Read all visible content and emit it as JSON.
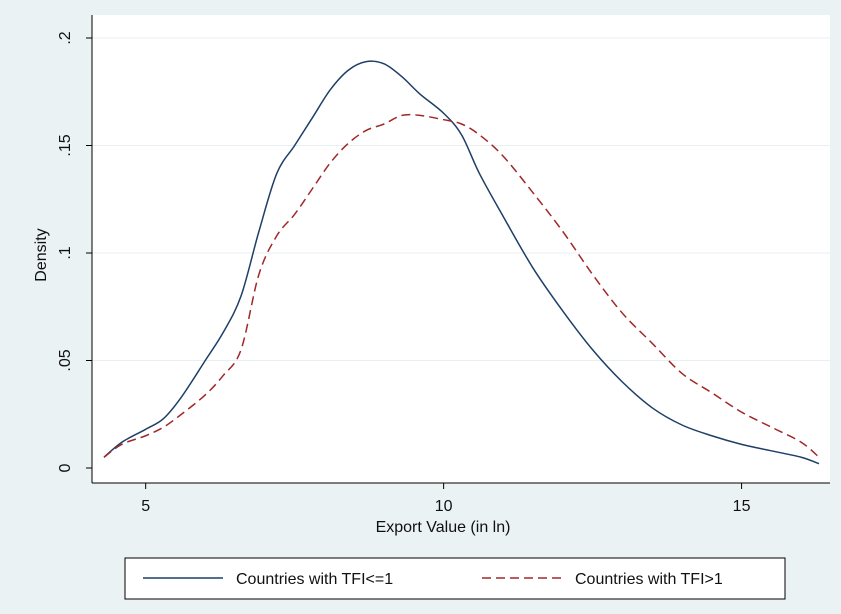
{
  "chart_data": {
    "type": "line",
    "title": "",
    "xlabel": "Export Value (in ln)",
    "ylabel": "Density",
    "xlim": [
      4.2,
      16.4
    ],
    "ylim": [
      0,
      0.205
    ],
    "x_ticks": [
      5,
      10,
      15
    ],
    "x_tick_labels": [
      "5",
      "10",
      "15"
    ],
    "y_ticks": [
      0,
      0.05,
      0.1,
      0.15,
      0.2
    ],
    "y_tick_labels": [
      "0",
      ".05",
      ".1",
      ".15",
      ".2"
    ],
    "grid": "horizontal",
    "legend_position": "bottom",
    "series": [
      {
        "name": "Countries with TFI<=1",
        "color": "#1e3f66",
        "style": "solid",
        "points": [
          [
            4.3,
            0.005
          ],
          [
            4.6,
            0.012
          ],
          [
            5.0,
            0.018
          ],
          [
            5.3,
            0.023
          ],
          [
            5.6,
            0.033
          ],
          [
            6.0,
            0.05
          ],
          [
            6.3,
            0.063
          ],
          [
            6.6,
            0.08
          ],
          [
            6.9,
            0.11
          ],
          [
            7.2,
            0.137
          ],
          [
            7.5,
            0.15
          ],
          [
            7.8,
            0.163
          ],
          [
            8.1,
            0.176
          ],
          [
            8.4,
            0.185
          ],
          [
            8.7,
            0.189
          ],
          [
            9.0,
            0.188
          ],
          [
            9.3,
            0.182
          ],
          [
            9.6,
            0.174
          ],
          [
            10.0,
            0.165
          ],
          [
            10.3,
            0.155
          ],
          [
            10.6,
            0.137
          ],
          [
            11.0,
            0.117
          ],
          [
            11.5,
            0.093
          ],
          [
            12.0,
            0.073
          ],
          [
            12.5,
            0.055
          ],
          [
            13.0,
            0.04
          ],
          [
            13.5,
            0.028
          ],
          [
            14.0,
            0.02
          ],
          [
            14.5,
            0.015
          ],
          [
            15.0,
            0.011
          ],
          [
            15.5,
            0.008
          ],
          [
            16.0,
            0.005
          ],
          [
            16.3,
            0.002
          ]
        ]
      },
      {
        "name": "Countries with TFI>1",
        "color": "#a0282a",
        "style": "dashed",
        "points": [
          [
            4.3,
            0.005
          ],
          [
            4.6,
            0.011
          ],
          [
            5.0,
            0.015
          ],
          [
            5.3,
            0.019
          ],
          [
            5.6,
            0.025
          ],
          [
            6.0,
            0.034
          ],
          [
            6.3,
            0.043
          ],
          [
            6.6,
            0.055
          ],
          [
            6.9,
            0.09
          ],
          [
            7.2,
            0.108
          ],
          [
            7.5,
            0.118
          ],
          [
            7.8,
            0.13
          ],
          [
            8.1,
            0.142
          ],
          [
            8.4,
            0.151
          ],
          [
            8.7,
            0.157
          ],
          [
            9.0,
            0.16
          ],
          [
            9.3,
            0.164
          ],
          [
            9.6,
            0.164
          ],
          [
            10.0,
            0.162
          ],
          [
            10.3,
            0.16
          ],
          [
            10.6,
            0.155
          ],
          [
            11.0,
            0.145
          ],
          [
            11.5,
            0.128
          ],
          [
            12.0,
            0.11
          ],
          [
            12.5,
            0.09
          ],
          [
            13.0,
            0.072
          ],
          [
            13.5,
            0.058
          ],
          [
            14.0,
            0.044
          ],
          [
            14.5,
            0.035
          ],
          [
            15.0,
            0.026
          ],
          [
            15.5,
            0.019
          ],
          [
            16.0,
            0.012
          ],
          [
            16.3,
            0.005
          ]
        ]
      }
    ]
  }
}
